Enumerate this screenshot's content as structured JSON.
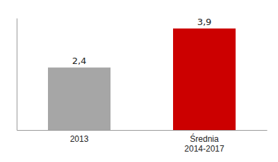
{
  "chart_data": {
    "type": "bar",
    "categories": [
      "2013",
      "Średnia\n2014-2017"
    ],
    "values": [
      2.4,
      3.9
    ],
    "value_labels": [
      "2,4",
      "3,9"
    ],
    "colors": [
      "#a6a6a6",
      "#cc0000"
    ],
    "ylim": [
      0,
      4.3
    ],
    "data_labels": true,
    "tick_labels": "x"
  }
}
